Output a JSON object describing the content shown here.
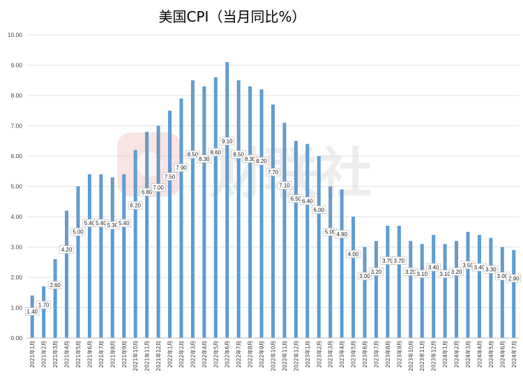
{
  "chart_data": {
    "type": "bar",
    "title": "美国CPI（当月同比%）",
    "categories": [
      "2021年1月",
      "2021年2月",
      "2021年3月",
      "2021年4月",
      "2021年5月",
      "2021年6月",
      "2021年7月",
      "2021年8月",
      "2021年9月",
      "2021年10月",
      "2021年11月",
      "2021年12月",
      "2022年1月",
      "2022年2月",
      "2022年3月",
      "2022年4月",
      "2022年5月",
      "2022年6月",
      "2022年7月",
      "2022年8月",
      "2022年9月",
      "2022年10月",
      "2022年11月",
      "2022年12月",
      "2023年1月",
      "2023年2月",
      "2023年3月",
      "2023年4月",
      "2023年5月",
      "2023年6月",
      "2023年7月",
      "2023年8月",
      "2023年9月",
      "2023年10月",
      "2023年11月",
      "2023年12月",
      "2024年1月",
      "2024年2月",
      "2024年3月",
      "2024年4月",
      "2024年5月",
      "2024年6月",
      "2024年7月"
    ],
    "values": [
      1.4,
      1.7,
      2.6,
      4.2,
      5.0,
      5.4,
      5.4,
      5.3,
      5.4,
      6.2,
      6.8,
      7.0,
      7.5,
      7.9,
      8.5,
      8.3,
      8.6,
      9.1,
      8.5,
      8.3,
      8.2,
      7.7,
      7.1,
      6.5,
      6.4,
      6.0,
      5.0,
      4.9,
      4.0,
      3.0,
      3.2,
      3.7,
      3.7,
      3.2,
      3.1,
      3.4,
      3.1,
      3.2,
      3.5,
      3.4,
      3.3,
      3.0,
      2.9
    ],
    "data_labels": [
      "1.40",
      "1.70",
      "2.60",
      "4.20",
      "5.00",
      "5.40",
      "5.40",
      "5.30",
      "5.40",
      "6.20",
      "6.80",
      "7.00",
      "7.50",
      "7.90",
      "8.50",
      "8.30",
      "8.60",
      "9.10",
      "8.50",
      "8.30",
      "8.20",
      "7.70",
      "7.10",
      "6.50",
      "6.40",
      "6.00",
      "5.00",
      "4.90",
      "4.00",
      "3.00",
      "3.20",
      "3.70",
      "3.70",
      "3.20",
      "3.10",
      "3.40",
      "3.10",
      "3.20",
      "3.50",
      "3.40",
      "3.30",
      "3.00",
      "2.90"
    ],
    "y_ticks": [
      "0.00",
      "1.00",
      "2.00",
      "3.00",
      "4.00",
      "5.00",
      "6.00",
      "7.00",
      "8.00",
      "9.00",
      "10.00"
    ],
    "ylim": [
      0,
      10
    ],
    "grid": true,
    "legend": false,
    "bar_color": "#5b9bd5"
  },
  "watermark": "财联社"
}
